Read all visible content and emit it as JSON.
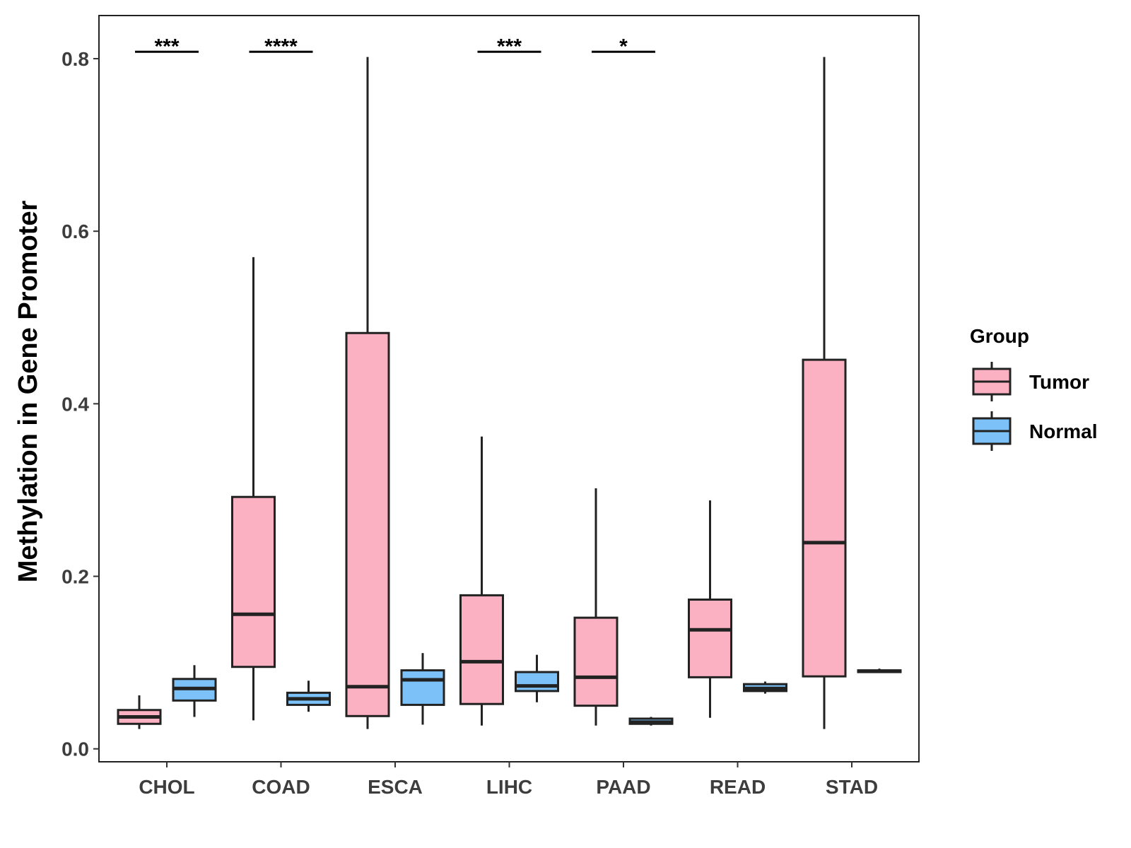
{
  "chart_data": {
    "type": "boxplot",
    "title": "",
    "xlabel": "",
    "ylabel": "Methylation in Gene Promoter",
    "ylim": [
      -0.015,
      0.85
    ],
    "yticks": [
      {
        "value": 0.0,
        "label": "0.0"
      },
      {
        "value": 0.2,
        "label": "0.2"
      },
      {
        "value": 0.4,
        "label": "0.4"
      },
      {
        "value": 0.6,
        "label": "0.6"
      },
      {
        "value": 0.8,
        "label": "0.8"
      }
    ],
    "grid": false,
    "legend": {
      "title": "Group",
      "position": "right",
      "entries": [
        "Tumor",
        "Normal"
      ]
    },
    "colors": {
      "Tumor": "#fcb1c3",
      "Normal": "#7cc2f8",
      "stroke": "#222222"
    },
    "categories": [
      "CHOL",
      "COAD",
      "ESCA",
      "LIHC",
      "PAAD",
      "READ",
      "STAD"
    ],
    "series": [
      {
        "name": "Tumor",
        "boxes": [
          {
            "min": 0.023,
            "q1": 0.029,
            "median": 0.037,
            "q3": 0.045,
            "max": 0.062
          },
          {
            "min": 0.033,
            "q1": 0.095,
            "median": 0.156,
            "q3": 0.292,
            "max": 0.57
          },
          {
            "min": 0.023,
            "q1": 0.038,
            "median": 0.072,
            "q3": 0.482,
            "max": 0.802
          },
          {
            "min": 0.027,
            "q1": 0.052,
            "median": 0.101,
            "q3": 0.178,
            "max": 0.362
          },
          {
            "min": 0.027,
            "q1": 0.05,
            "median": 0.083,
            "q3": 0.152,
            "max": 0.302
          },
          {
            "min": 0.036,
            "q1": 0.083,
            "median": 0.138,
            "q3": 0.173,
            "max": 0.288
          },
          {
            "min": 0.023,
            "q1": 0.084,
            "median": 0.239,
            "q3": 0.451,
            "max": 0.802
          }
        ]
      },
      {
        "name": "Normal",
        "boxes": [
          {
            "min": 0.037,
            "q1": 0.056,
            "median": 0.07,
            "q3": 0.081,
            "max": 0.097
          },
          {
            "min": 0.043,
            "q1": 0.051,
            "median": 0.058,
            "q3": 0.065,
            "max": 0.079
          },
          {
            "min": 0.028,
            "q1": 0.051,
            "median": 0.08,
            "q3": 0.091,
            "max": 0.111
          },
          {
            "min": 0.054,
            "q1": 0.067,
            "median": 0.073,
            "q3": 0.089,
            "max": 0.109
          },
          {
            "min": 0.027,
            "q1": 0.029,
            "median": 0.031,
            "q3": 0.035,
            "max": 0.037
          },
          {
            "min": 0.064,
            "q1": 0.067,
            "median": 0.07,
            "q3": 0.075,
            "max": 0.078
          },
          {
            "min": 0.088,
            "q1": 0.089,
            "median": 0.09,
            "q3": 0.091,
            "max": 0.093
          }
        ]
      }
    ],
    "significance": [
      {
        "category": "CHOL",
        "label": "***"
      },
      {
        "category": "COAD",
        "label": "****"
      },
      {
        "category": "LIHC",
        "label": "***"
      },
      {
        "category": "PAAD",
        "label": "*"
      }
    ]
  }
}
